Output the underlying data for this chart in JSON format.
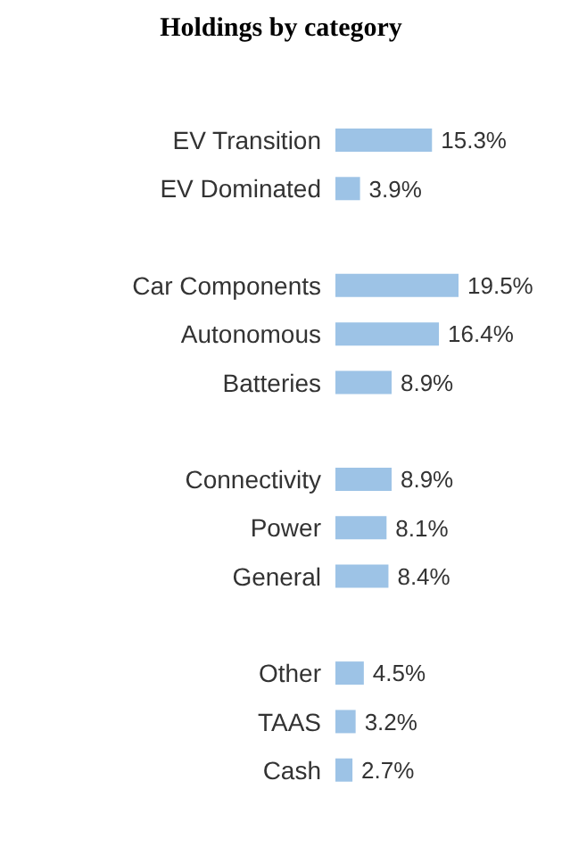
{
  "chart_data": {
    "type": "bar",
    "orientation": "horizontal",
    "title": "Holdings by category",
    "categories": [
      "EV Transition",
      "EV Dominated",
      null,
      "Car Components",
      "Autonomous",
      "Batteries",
      null,
      "Connectivity",
      "Power",
      "General",
      null,
      "Other",
      "TAAS",
      "Cash"
    ],
    "values": [
      15.3,
      3.9,
      null,
      19.5,
      16.4,
      8.9,
      null,
      8.9,
      8.1,
      8.4,
      null,
      4.5,
      3.2,
      2.7
    ],
    "value_labels": [
      "15.3%",
      "3.9%",
      null,
      "19.5%",
      "16.4%",
      "8.9%",
      null,
      "8.9%",
      "8.1%",
      "8.4%",
      null,
      "4.5%",
      "3.2%",
      "2.7%"
    ],
    "color": "#9dc3e6"
  }
}
